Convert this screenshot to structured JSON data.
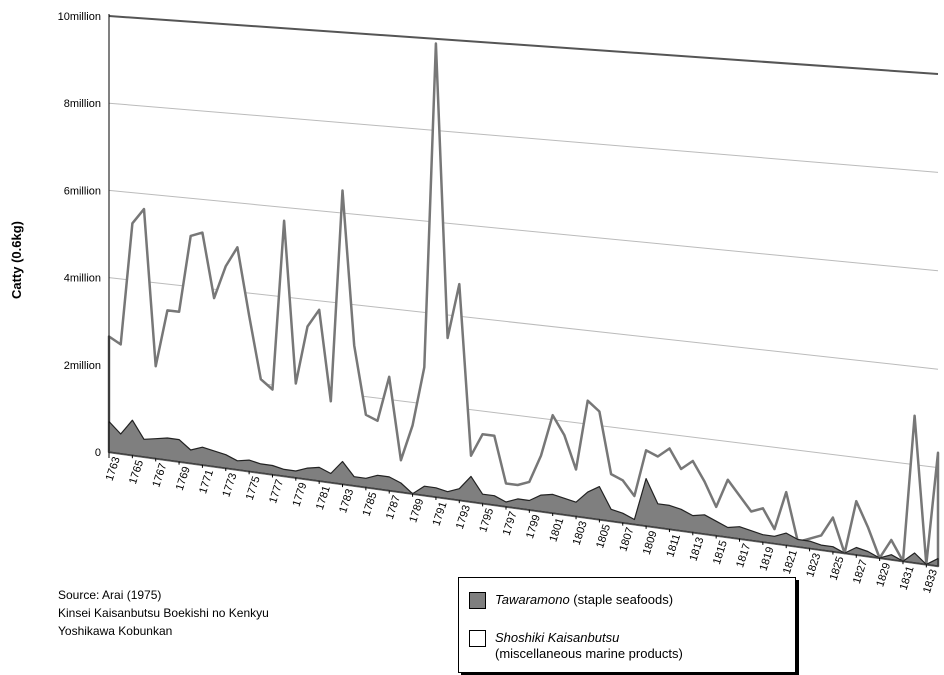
{
  "chart_data": {
    "type": "area",
    "ylabel": "Catty (0.6kg)",
    "ylim": [
      0,
      10000000
    ],
    "y_ticks": [
      {
        "value": 0,
        "label": "0"
      },
      {
        "value": 2000000,
        "label": "2million"
      },
      {
        "value": 4000000,
        "label": "4million"
      },
      {
        "value": 6000000,
        "label": "6million"
      },
      {
        "value": 8000000,
        "label": "8million"
      },
      {
        "value": 10000000,
        "label": "10million"
      }
    ],
    "x_tick_labels": [
      "1763",
      "1765",
      "1767",
      "1769",
      "1771",
      "1773",
      "1775",
      "1777",
      "1779",
      "1781",
      "1783",
      "1785",
      "1787",
      "1789",
      "1791",
      "1793",
      "1795",
      "1797",
      "1799",
      "1801",
      "1803",
      "1805",
      "1807",
      "1809",
      "1811",
      "1813",
      "1815",
      "1817",
      "1819",
      "1821",
      "1823",
      "1825",
      "1827",
      "1829",
      "1831",
      "1833"
    ],
    "x": [
      1763,
      1764,
      1765,
      1766,
      1767,
      1768,
      1769,
      1770,
      1771,
      1772,
      1773,
      1774,
      1775,
      1776,
      1777,
      1778,
      1779,
      1780,
      1781,
      1782,
      1783,
      1784,
      1785,
      1786,
      1787,
      1788,
      1789,
      1790,
      1791,
      1792,
      1793,
      1794,
      1795,
      1796,
      1797,
      1798,
      1799,
      1800,
      1801,
      1802,
      1803,
      1804,
      1805,
      1806,
      1807,
      1808,
      1809,
      1810,
      1811,
      1812,
      1813,
      1814,
      1815,
      1816,
      1817,
      1818,
      1819,
      1820,
      1821,
      1822,
      1823,
      1824,
      1825,
      1826,
      1827,
      1828,
      1829,
      1830,
      1831,
      1832,
      1833,
      1834
    ],
    "grid": true,
    "series": [
      {
        "name": "Shoshiki Kaisanbutsu",
        "fill": "#ffffff",
        "values": [
          2650000,
          2500000,
          5300000,
          5650000,
          2100000,
          3400000,
          3400000,
          5150000,
          5250000,
          3800000,
          4550000,
          5000000,
          3500000,
          2100000,
          1900000,
          5700000,
          2100000,
          3400000,
          3800000,
          1800000,
          6500000,
          3100000,
          1600000,
          1500000,
          2500000,
          700000,
          1500000,
          2800000,
          9900000,
          3500000,
          4700000,
          1000000,
          1500000,
          1500000,
          500000,
          500000,
          600000,
          1200000,
          2100000,
          1700000,
          1000000,
          2500000,
          2300000,
          1000000,
          900000,
          600000,
          1600000,
          1500000,
          1700000,
          1300000,
          1500000,
          1100000,
          600000,
          1200000,
          900000,
          600000,
          700000,
          300000,
          1100000,
          100000,
          200000,
          300000,
          700000,
          0,
          1100000,
          600000,
          0,
          400000,
          0,
          3000000,
          0,
          2300000
        ]
      },
      {
        "name": "Tawaramono",
        "fill": "#7f7f7f",
        "values": [
          700000,
          450000,
          800000,
          400000,
          450000,
          500000,
          500000,
          300000,
          400000,
          350000,
          300000,
          200000,
          250000,
          200000,
          200000,
          150000,
          150000,
          250000,
          300000,
          200000,
          500000,
          200000,
          200000,
          300000,
          300000,
          200000,
          0,
          200000,
          200000,
          150000,
          250000,
          550000,
          200000,
          200000,
          100000,
          200000,
          200000,
          350000,
          400000,
          350000,
          300000,
          550000,
          700000,
          250000,
          200000,
          100000,
          1000000,
          500000,
          500000,
          450000,
          350000,
          400000,
          300000,
          200000,
          250000,
          200000,
          150000,
          150000,
          250000,
          150000,
          150000,
          100000,
          100000,
          0,
          150000,
          100000,
          0,
          100000,
          0,
          200000,
          0,
          150000
        ]
      }
    ]
  },
  "source": {
    "line1": "Source: Arai (1975)",
    "line2": "Kinsei Kaisanbutsu Boekishi no Kenkyu",
    "line3": "Yoshikawa Kobunkan"
  },
  "legend": {
    "items": [
      {
        "italic": "Tawaramono",
        "rest": " (staple seafoods)",
        "color": "#7f7f7f"
      },
      {
        "italic": "Shoshiki Kaisanbutsu",
        "line2": "(miscellaneous marine products)",
        "color": "#ffffff"
      }
    ]
  }
}
